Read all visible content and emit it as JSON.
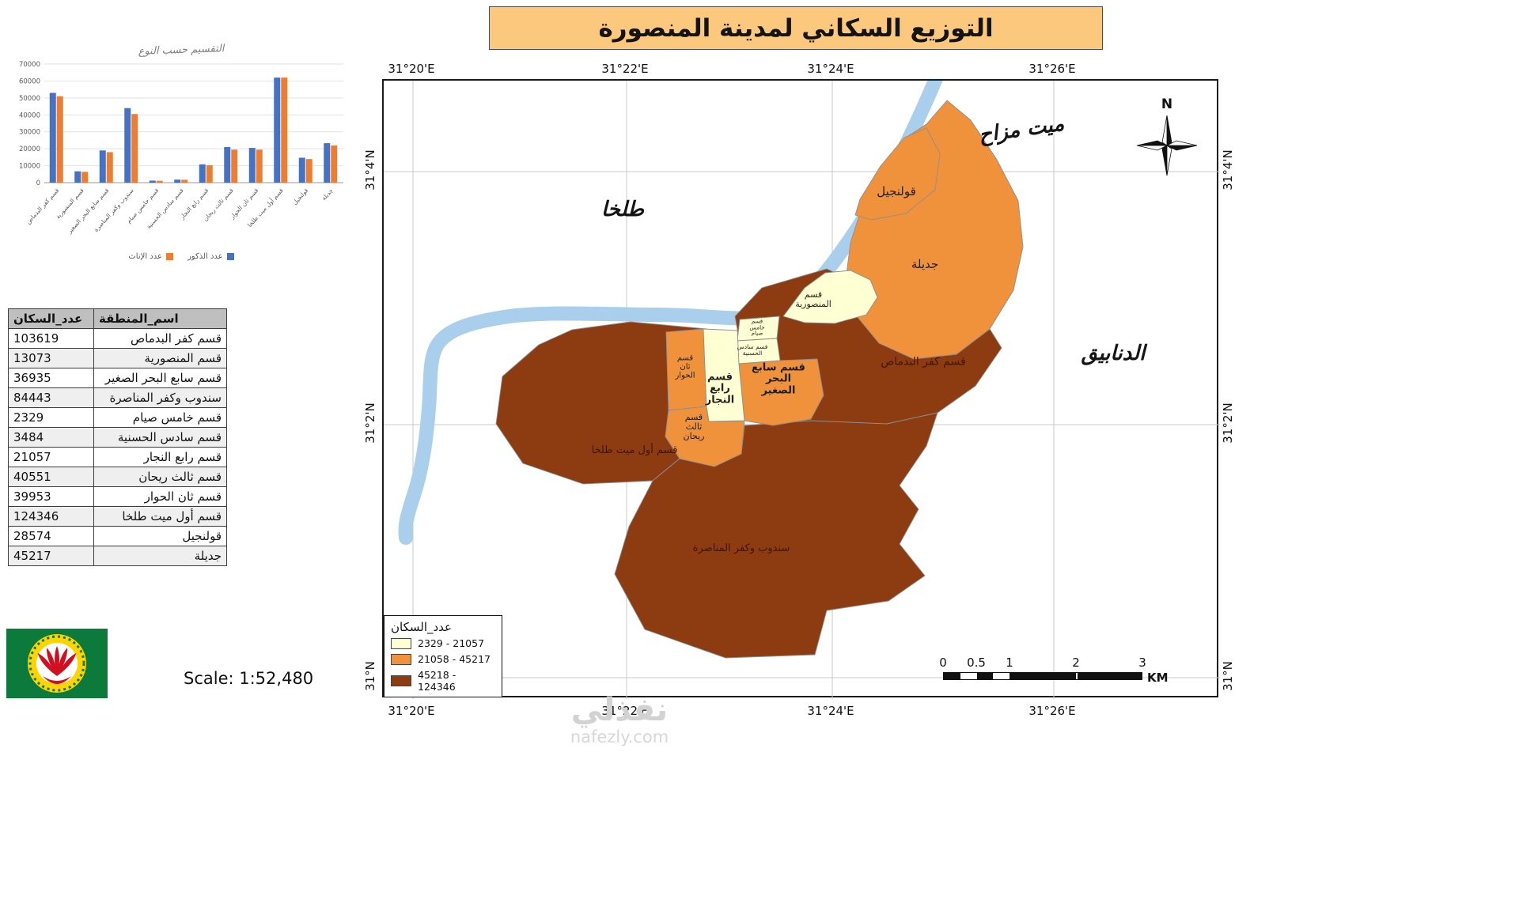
{
  "title": "التوزيع السكاني لمدينة المنصورة",
  "scale_text": "Scale: 1:52,480",
  "chart_data": {
    "type": "bar",
    "title": "التقسيم حسب النوع",
    "categories": [
      "قسم كفر البدماص",
      "قسم المنصورية",
      "قسم سابع البحر الصغير",
      "سندوب وكفر المناصرة",
      "قسم خامس صيام",
      "قسم سادس الحسنية",
      "قسم رابع النجار",
      "قسم ثالث ريحان",
      "قسم ثان الحوار",
      "قسم أول ميت طلخا",
      "قولنجيل",
      "جديلة"
    ],
    "series": [
      {
        "name": "عدد الذكور",
        "color": "#4472C4",
        "values": [
          53000,
          6700,
          19000,
          44000,
          1200,
          1800,
          10800,
          21000,
          20500,
          62000,
          14700,
          23300
        ]
      },
      {
        "name": "عدد الإناث",
        "color": "#ED7D31",
        "values": [
          51000,
          6400,
          18000,
          40500,
          1100,
          1700,
          10300,
          19500,
          19500,
          62000,
          13900,
          21900
        ]
      }
    ],
    "ylim": [
      0,
      70000
    ],
    "yticks": [
      0,
      10000,
      20000,
      30000,
      40000,
      50000,
      60000,
      70000
    ],
    "legend_position": "bottom",
    "grid": true
  },
  "table": {
    "headers": {
      "population": "عدد_السكان",
      "region": "اسم_المنطقة"
    },
    "rows": [
      {
        "population": "103619",
        "region": "قسم كفر البدماص"
      },
      {
        "population": "13073",
        "region": "قسم المنصورية"
      },
      {
        "population": "36935",
        "region": "قسم سابع البحر الصغير"
      },
      {
        "population": "84443",
        "region": "سندوب وكفر المناصرة"
      },
      {
        "population": "2329",
        "region": "قسم خامس صيام"
      },
      {
        "population": "3484",
        "region": "قسم سادس الحسنية"
      },
      {
        "population": "21057",
        "region": "قسم رابع النجار"
      },
      {
        "population": "40551",
        "region": "قسم ثالث ريحان"
      },
      {
        "population": "39953",
        "region": "قسم ثان الحوار"
      },
      {
        "population": "124346",
        "region": "قسم أول ميت طلخا"
      },
      {
        "population": "28574",
        "region": "قولنجيل"
      },
      {
        "population": "45217",
        "region": "جديلة"
      }
    ]
  },
  "map": {
    "top_coords": [
      "31°20'E",
      "31°22'E",
      "31°24'E",
      "31°26'E"
    ],
    "bottom_coords": [
      "31°20'E",
      "31°22'E",
      "31°24'E",
      "31°26'E"
    ],
    "left_coords": [
      "31°4'N",
      "31°2'N",
      "31°N"
    ],
    "right_coords": [
      "31°4'N",
      "31°2'N",
      "31°N"
    ],
    "context_labels": [
      "طلخا",
      "ميت مزاح",
      "الدنابيق"
    ],
    "north_label": "N",
    "river_color": "#A9CFEC",
    "districts": [
      {
        "name": "قولنجيل",
        "class": "mid"
      },
      {
        "name": "جديلة",
        "class": "mid"
      },
      {
        "name": "قسم المنصورية",
        "class": "low"
      },
      {
        "name": "قسم خامس صيام",
        "class": "low"
      },
      {
        "name": "قسم سادس الحسنية",
        "class": "low"
      },
      {
        "name": "قسم ثان الحوار",
        "class": "mid"
      },
      {
        "name": "قسم رابع النجار",
        "class": "low"
      },
      {
        "name": "قسم سابع البحر الصغير",
        "class": "mid"
      },
      {
        "name": "قسم ثالث ريحان",
        "class": "mid"
      },
      {
        "name": "قسم كفر البدماص",
        "class": "high"
      },
      {
        "name": "قسم أول ميت طلخا",
        "class": "high"
      },
      {
        "name": "سندوب وكفر المناصرة",
        "class": "high"
      }
    ],
    "legend": {
      "title": "عدد_السكان",
      "classes": [
        {
          "key": "low",
          "label": "2329 - 21057",
          "color": "#FFFFD4"
        },
        {
          "key": "mid",
          "label": "21058 - 45217",
          "color": "#F0913C"
        },
        {
          "key": "high",
          "label": "45218 - 124346",
          "color": "#8D3B10"
        }
      ]
    },
    "scalebar": {
      "labels": [
        "0",
        "0.5",
        "1",
        "2",
        "3"
      ],
      "unit": "KM"
    }
  },
  "watermark": {
    "brand": "نفذلي",
    "domain": "nafezly.com"
  }
}
